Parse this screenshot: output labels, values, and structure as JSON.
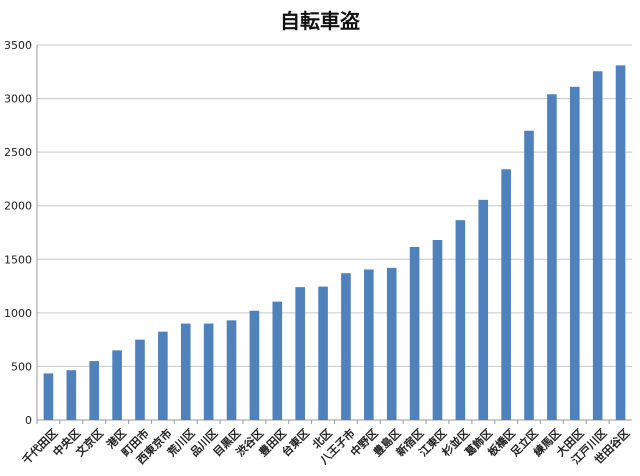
{
  "chart_data": {
    "type": "bar",
    "title": "自転車盗",
    "xlabel": "",
    "ylabel": "",
    "ylim": [
      0,
      3500
    ],
    "yticks": [
      0,
      500,
      1000,
      1500,
      2000,
      2500,
      3000,
      3500
    ],
    "grid": true,
    "legend": "none",
    "bar_color": "#4f81bd",
    "grid_color": "#c8c8c8",
    "categories": [
      "千代田区",
      "中央区",
      "文京区",
      "港区",
      "町田市",
      "西東京市",
      "荒川区",
      "品川区",
      "目黒区",
      "渋谷区",
      "豊田区",
      "台東区",
      "北区",
      "八王子市",
      "中野区",
      "豊島区",
      "新宿区",
      "江東区",
      "杉並区",
      "葛飾区",
      "板橋区",
      "足立区",
      "練馬区",
      "大田区",
      "江戸川区",
      "世田谷区"
    ],
    "values": [
      435,
      465,
      550,
      650,
      750,
      825,
      900,
      900,
      930,
      1020,
      1105,
      1240,
      1245,
      1370,
      1405,
      1420,
      1615,
      1680,
      1865,
      2055,
      2340,
      2700,
      3040,
      3110,
      3255,
      3310
    ]
  }
}
